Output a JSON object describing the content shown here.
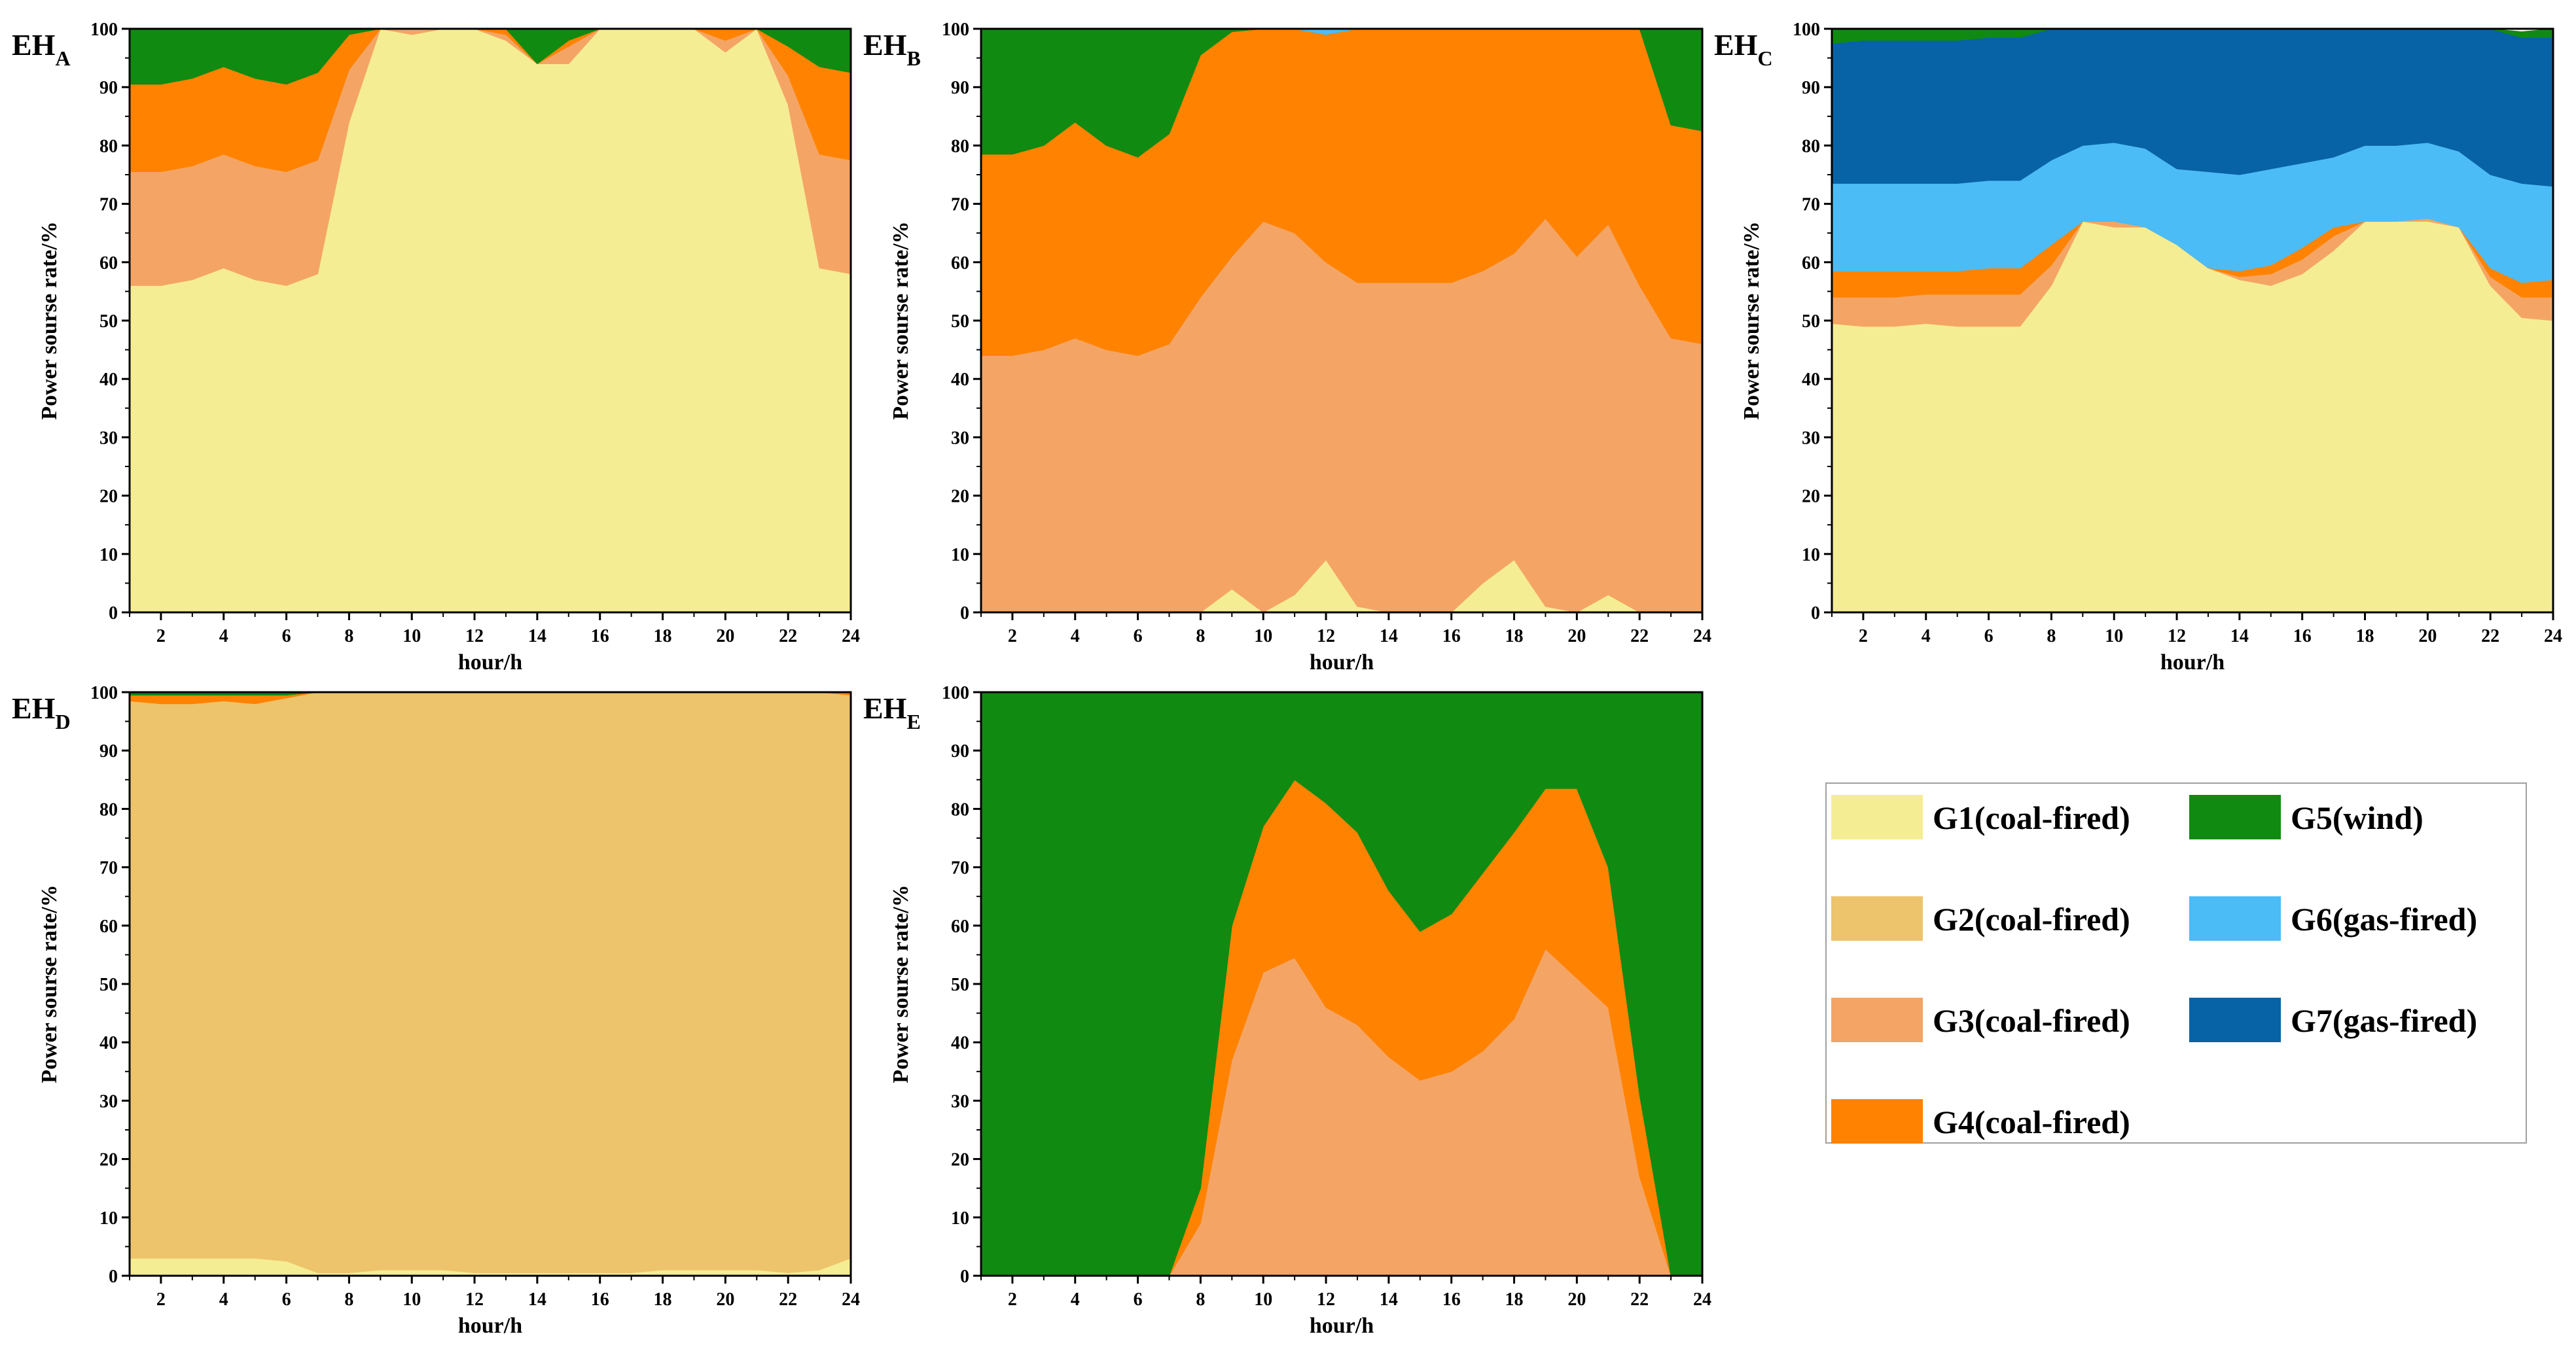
{
  "legend": [
    {
      "label": "G1(coal-fired)",
      "color": "#f5ed93"
    },
    {
      "label": "G2(coal-fired)",
      "color": "#edc46c"
    },
    {
      "label": "G3(coal-fired)",
      "color": "#f4a565"
    },
    {
      "label": "G4(coal-fired)",
      "color": "#ff8200"
    },
    {
      "label": "G5(wind)",
      "color": "#118a11"
    },
    {
      "label": "G6(gas-fired)",
      "color": "#4cbcf6"
    },
    {
      "label": "G7(gas-fired)",
      "color": "#0862a6"
    }
  ],
  "chart_data": [
    {
      "type": "area",
      "panel": "EH",
      "panel_sub": "A",
      "xlabel": "hour/h",
      "ylabel": "Power sourse rate/%",
      "xlim": [
        1,
        24
      ],
      "ylim": [
        0,
        100
      ],
      "xticks": [
        2,
        4,
        6,
        8,
        10,
        12,
        14,
        16,
        18,
        20,
        22,
        24
      ],
      "yticks": [
        0,
        10,
        20,
        30,
        40,
        50,
        60,
        70,
        80,
        90,
        100
      ],
      "x": [
        1,
        2,
        3,
        4,
        5,
        6,
        7,
        8,
        9,
        10,
        11,
        12,
        13,
        14,
        15,
        16,
        17,
        18,
        19,
        20,
        21,
        22,
        23,
        24
      ],
      "series": [
        {
          "name": "G1(coal-fired)",
          "values": [
            56,
            56,
            57,
            59,
            57,
            56,
            58,
            84,
            100,
            99,
            100,
            100,
            98,
            94,
            94,
            100,
            100,
            100,
            100,
            96,
            100,
            87,
            59,
            58
          ]
        },
        {
          "name": "G3(coal-fired)",
          "values": [
            19.5,
            19.5,
            19.5,
            19.5,
            19.5,
            19.5,
            19.5,
            9,
            0,
            1,
            0,
            0,
            1,
            0,
            3,
            0,
            0,
            0,
            0,
            2,
            0,
            5,
            19.5,
            19.5
          ]
        },
        {
          "name": "G4(coal-fired)",
          "values": [
            15,
            15,
            15,
            15,
            15,
            15,
            15,
            6,
            0,
            0,
            0,
            0,
            1,
            0,
            1,
            0,
            0,
            0,
            0,
            2,
            0,
            5,
            15,
            15
          ]
        },
        {
          "name": "G5(wind)",
          "values": [
            9.5,
            9.5,
            8.5,
            6.5,
            8.5,
            9.5,
            7.5,
            1,
            0,
            0,
            0,
            0,
            0,
            6,
            2,
            0,
            0,
            0,
            0,
            0,
            0,
            3,
            6.5,
            7.5
          ]
        }
      ]
    },
    {
      "type": "area",
      "panel": "EH",
      "panel_sub": "B",
      "xlabel": "hour/h",
      "ylabel": "Power sourse rate/%",
      "xlim": [
        1,
        24
      ],
      "ylim": [
        0,
        100
      ],
      "xticks": [
        2,
        4,
        6,
        8,
        10,
        12,
        14,
        16,
        18,
        20,
        22,
        24
      ],
      "yticks": [
        0,
        10,
        20,
        30,
        40,
        50,
        60,
        70,
        80,
        90,
        100
      ],
      "x": [
        1,
        2,
        3,
        4,
        5,
        6,
        7,
        8,
        9,
        10,
        11,
        12,
        13,
        14,
        15,
        16,
        17,
        18,
        19,
        20,
        21,
        22,
        23,
        24
      ],
      "series": [
        {
          "name": "G1(coal-fired)",
          "values": [
            0,
            0,
            0,
            0,
            0,
            0,
            0,
            0,
            4,
            0,
            3,
            9,
            1,
            0,
            0,
            0,
            5,
            9,
            1,
            0,
            3,
            0,
            0,
            0
          ]
        },
        {
          "name": "G3(coal-fired)",
          "values": [
            44,
            44,
            45,
            47,
            45,
            44,
            46,
            54,
            57,
            67,
            62,
            51,
            55.5,
            56.5,
            56.5,
            56.5,
            53.5,
            52.5,
            66.5,
            61,
            63.5,
            56,
            47,
            46
          ]
        },
        {
          "name": "G4(coal-fired)",
          "values": [
            34.5,
            34.5,
            35,
            37,
            35,
            34,
            36,
            41.5,
            38.5,
            33,
            35,
            39,
            43.5,
            43.5,
            43.5,
            43.5,
            41.5,
            38.5,
            32.5,
            39,
            33.5,
            44,
            36.5,
            36.5
          ]
        },
        {
          "name": "G5(wind)",
          "values": [
            21.5,
            21.5,
            20,
            16,
            20,
            22,
            18,
            4.5,
            0.5,
            0,
            0,
            0,
            0,
            0,
            0,
            0,
            0,
            0,
            0,
            0,
            0,
            0,
            16.5,
            17.5
          ]
        },
        {
          "name": "G6(gas-fired)",
          "values": [
            0,
            0,
            0,
            0,
            0,
            0,
            0,
            0,
            0,
            0,
            0,
            1,
            0,
            0,
            0,
            0,
            0,
            0,
            0,
            0,
            0,
            0,
            0,
            0
          ]
        }
      ]
    },
    {
      "type": "area",
      "panel": "EH",
      "panel_sub": "C",
      "xlabel": "hour/h",
      "ylabel": "Power sourse rate/%",
      "xlim": [
        1,
        24
      ],
      "ylim": [
        0,
        100
      ],
      "xticks": [
        2,
        4,
        6,
        8,
        10,
        12,
        14,
        16,
        18,
        20,
        22,
        24
      ],
      "yticks": [
        0,
        10,
        20,
        30,
        40,
        50,
        60,
        70,
        80,
        90,
        100
      ],
      "x": [
        1,
        2,
        3,
        4,
        5,
        6,
        7,
        8,
        9,
        10,
        11,
        12,
        13,
        14,
        15,
        16,
        17,
        18,
        19,
        20,
        21,
        22,
        23,
        24
      ],
      "series": [
        {
          "name": "G1(coal-fired)",
          "values": [
            49.5,
            49,
            49,
            49.5,
            49,
            49,
            49,
            56,
            67,
            66,
            66,
            63,
            59,
            57,
            56,
            58,
            62,
            67,
            67,
            67,
            66,
            56,
            50.5,
            50
          ]
        },
        {
          "name": "G3(coal-fired)",
          "values": [
            4.5,
            5,
            5,
            5,
            5.5,
            5.5,
            5.5,
            3.5,
            0,
            1,
            0,
            0,
            0,
            0.5,
            2,
            2.5,
            2.5,
            0,
            0,
            0.5,
            0,
            1.5,
            3.5,
            4
          ]
        },
        {
          "name": "G4(coal-fired)",
          "values": [
            4.5,
            4.5,
            4.5,
            4,
            4,
            4.5,
            4.5,
            3.5,
            0,
            0,
            0,
            0,
            0,
            1,
            1.5,
            2,
            1.5,
            0,
            0,
            0,
            0,
            1.5,
            2.5,
            3
          ]
        },
        {
          "name": "G6(gas-fired)",
          "values": [
            15,
            15,
            15,
            15,
            15,
            15,
            15,
            14.5,
            13,
            13.5,
            13.5,
            13,
            16.5,
            16.5,
            16.5,
            14.5,
            12,
            13,
            13,
            13,
            13,
            16,
            17,
            16
          ]
        },
        {
          "name": "G7(gas-fired)",
          "values": [
            24,
            24.5,
            24.5,
            24.5,
            24.5,
            24.5,
            24.5,
            22.5,
            20,
            19.5,
            20.5,
            24,
            24.5,
            25,
            24,
            23,
            22,
            20,
            20,
            19.5,
            21,
            25,
            25,
            25.5
          ]
        },
        {
          "name": "G5(wind)",
          "values": [
            2.5,
            2,
            2,
            2,
            2,
            2,
            1.5,
            0,
            0,
            0,
            0,
            0,
            0,
            0,
            0,
            0,
            0,
            0,
            0,
            0,
            0,
            0,
            1,
            1.5
          ]
        }
      ]
    },
    {
      "type": "area",
      "panel": "EH",
      "panel_sub": "D",
      "xlabel": "hour/h",
      "ylabel": "Power sourse rate/%",
      "xlim": [
        1,
        24
      ],
      "ylim": [
        0,
        100
      ],
      "xticks": [
        2,
        4,
        6,
        8,
        10,
        12,
        14,
        16,
        18,
        20,
        22,
        24
      ],
      "yticks": [
        0,
        10,
        20,
        30,
        40,
        50,
        60,
        70,
        80,
        90,
        100
      ],
      "x": [
        1,
        2,
        3,
        4,
        5,
        6,
        7,
        8,
        9,
        10,
        11,
        12,
        13,
        14,
        15,
        16,
        17,
        18,
        19,
        20,
        21,
        22,
        23,
        24
      ],
      "series": [
        {
          "name": "G1(coal-fired)",
          "values": [
            3,
            3,
            3,
            3,
            3,
            2.5,
            0.5,
            0.5,
            1,
            1,
            1,
            0.5,
            0.5,
            0.5,
            0.5,
            0.5,
            0.5,
            1,
            1,
            1,
            1,
            0.5,
            1,
            3
          ]
        },
        {
          "name": "G2(coal-fired)",
          "values": [
            95.5,
            95,
            95,
            95.5,
            95,
            96.5,
            99.5,
            99.5,
            99,
            99,
            99,
            99.5,
            99.5,
            99.5,
            99.5,
            99.5,
            99.5,
            99,
            99,
            99,
            99,
            99.5,
            99,
            96.5
          ]
        },
        {
          "name": "G4(coal-fired)",
          "values": [
            1,
            1.5,
            1.5,
            1,
            1.5,
            0.5,
            0,
            0,
            0,
            0,
            0,
            0,
            0,
            0,
            0,
            0,
            0,
            0,
            0,
            0,
            0,
            0,
            0,
            0.5
          ]
        },
        {
          "name": "G5(wind)",
          "values": [
            0.5,
            0.5,
            0.5,
            0.5,
            0.5,
            0.5,
            0,
            0,
            0,
            0,
            0,
            0,
            0,
            0,
            0,
            0,
            0,
            0,
            0,
            0,
            0,
            0,
            0,
            0
          ]
        }
      ]
    },
    {
      "type": "area",
      "panel": "EH",
      "panel_sub": "E",
      "xlabel": "hour/h",
      "ylabel": "Power sourse rate/%",
      "xlim": [
        1,
        24
      ],
      "ylim": [
        0,
        100
      ],
      "xticks": [
        2,
        4,
        6,
        8,
        10,
        12,
        14,
        16,
        18,
        20,
        22,
        24
      ],
      "yticks": [
        0,
        10,
        20,
        30,
        40,
        50,
        60,
        70,
        80,
        90,
        100
      ],
      "x": [
        1,
        2,
        3,
        4,
        5,
        6,
        7,
        8,
        9,
        10,
        11,
        12,
        13,
        14,
        15,
        16,
        17,
        18,
        19,
        20,
        21,
        22,
        23,
        24
      ],
      "series": [
        {
          "name": "G3(coal-fired)",
          "values": [
            0,
            0,
            0,
            0,
            0,
            0,
            0,
            9,
            37,
            52,
            54.5,
            46,
            43,
            37.5,
            33.5,
            35,
            38.5,
            44,
            56,
            51,
            46,
            17,
            0,
            0
          ]
        },
        {
          "name": "G4(coal-fired)",
          "values": [
            0,
            0,
            0,
            0,
            0,
            0,
            0,
            6,
            23,
            25,
            30.5,
            35,
            33,
            28.5,
            25.5,
            27,
            30.5,
            32,
            27.5,
            32.5,
            24,
            14,
            0,
            0
          ]
        },
        {
          "name": "G5(wind)",
          "values": [
            100,
            100,
            100,
            100,
            100,
            100,
            100,
            85,
            40,
            23,
            15,
            19,
            24,
            34,
            41,
            38,
            31,
            24,
            16.5,
            16.5,
            30,
            69,
            100,
            100
          ]
        }
      ]
    }
  ]
}
